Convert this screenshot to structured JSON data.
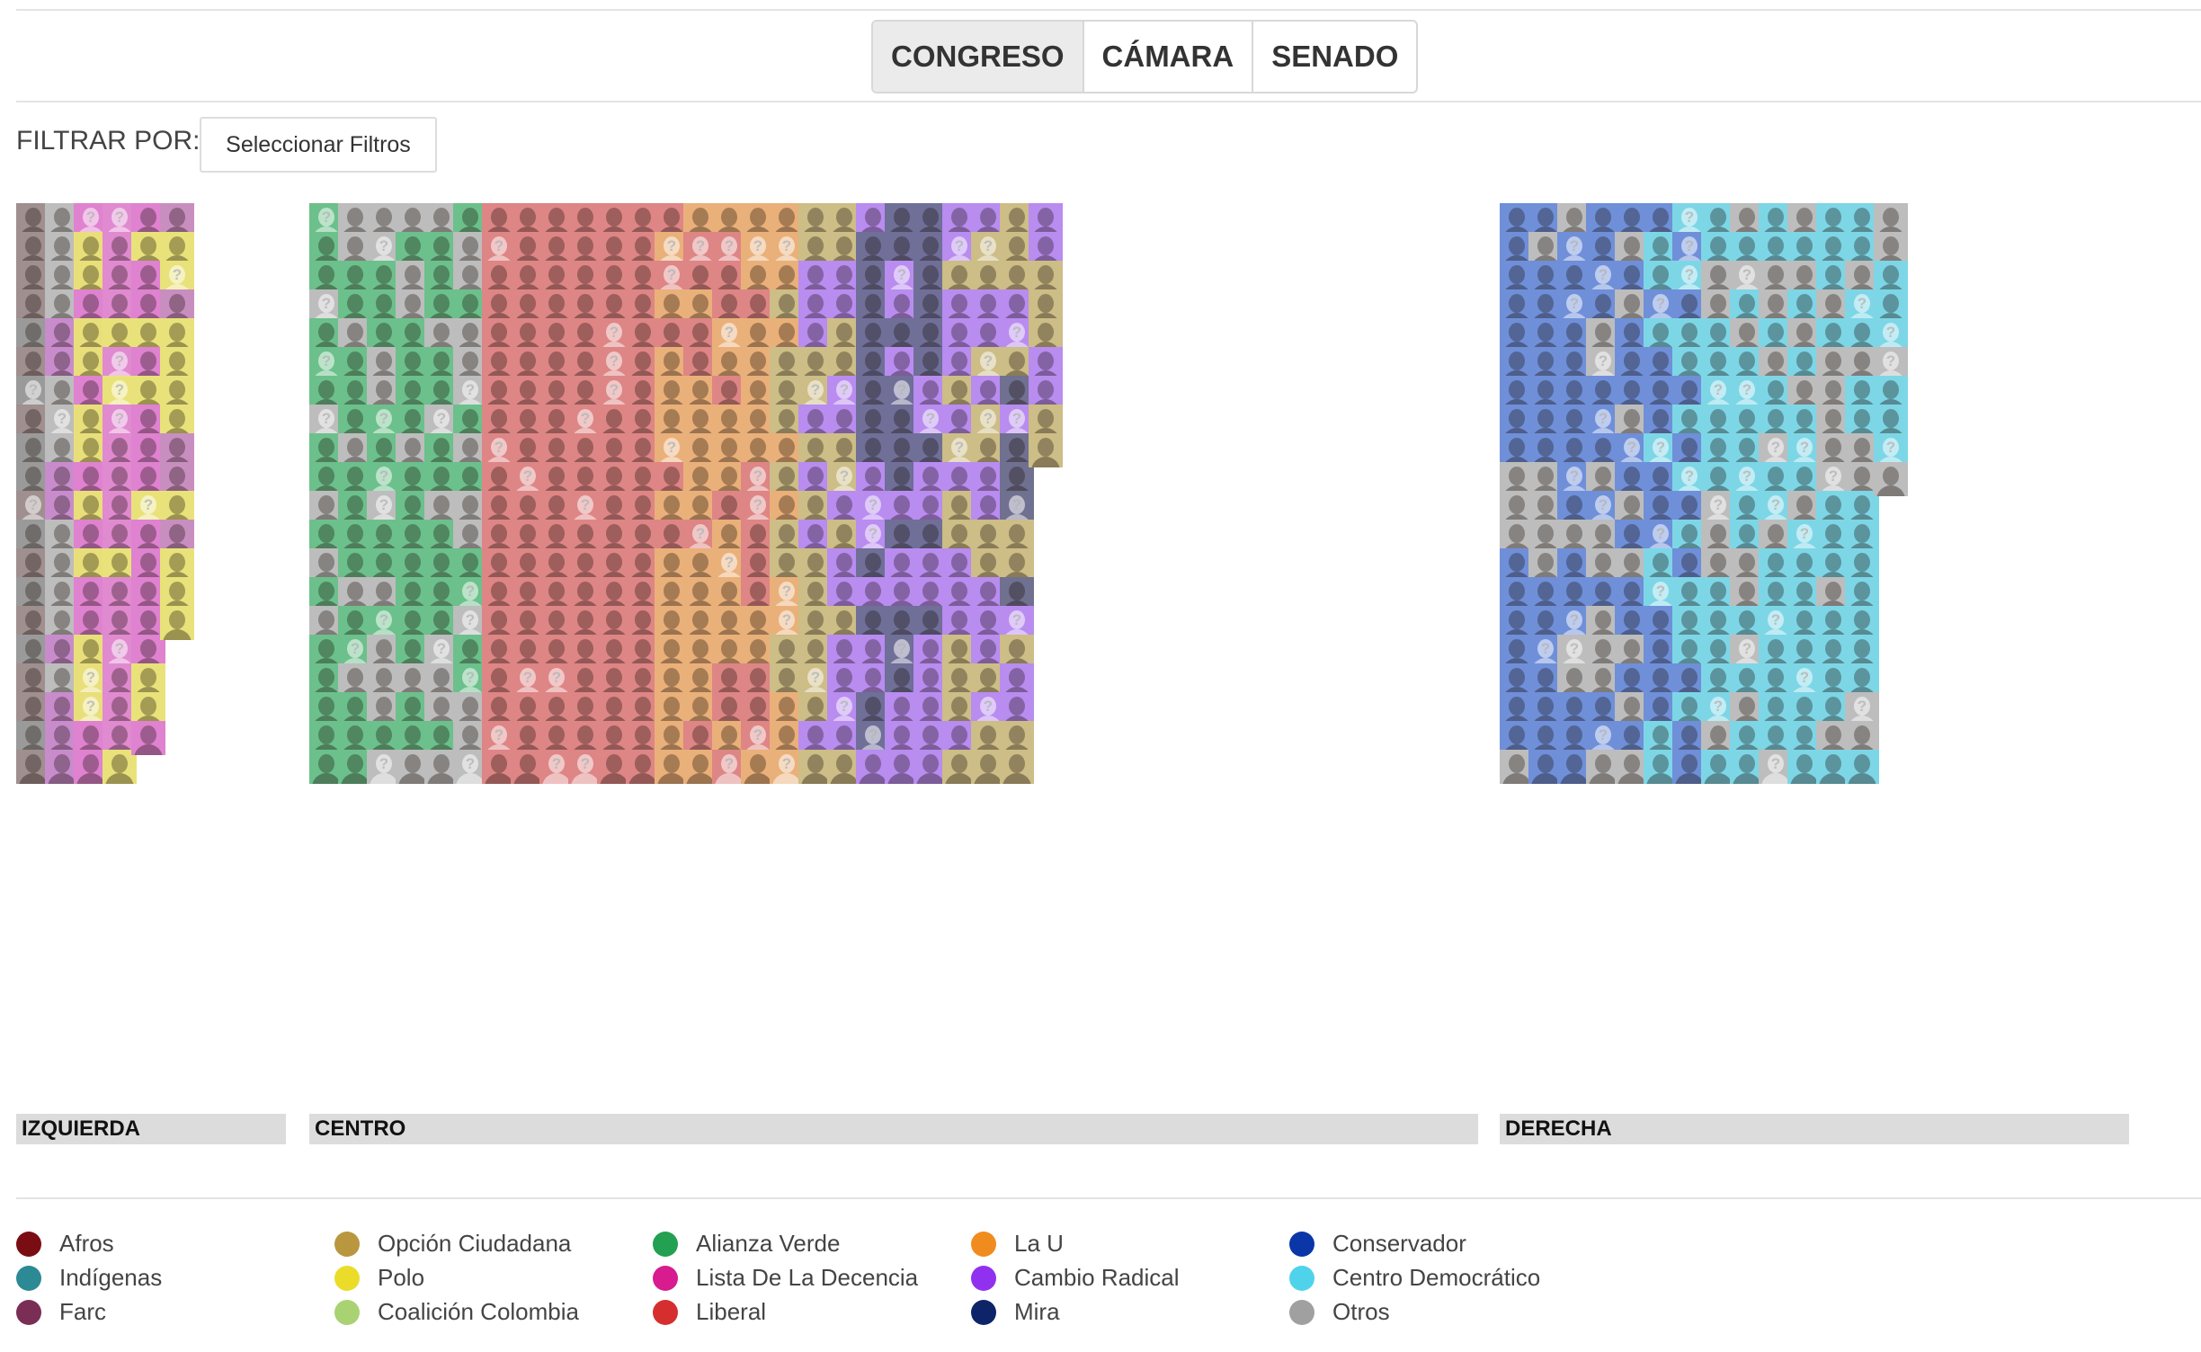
{
  "tabs": [
    "CONGRESO",
    "CÁMARA",
    "SENADO"
  ],
  "active_tab": "CONGRESO",
  "filter": {
    "label": "FILTRAR POR:",
    "button": "Seleccionar Filtros"
  },
  "blocs": [
    "IZQUIERDA",
    "CENTRO",
    "DERECHA"
  ],
  "legend": [
    {
      "label": "Afros",
      "color": "#7a0d14"
    },
    {
      "label": "Indígenas",
      "color": "#2b8a93"
    },
    {
      "label": "Farc",
      "color": "#7b2e55"
    },
    {
      "label": "Opción Ciudadana",
      "color": "#b9973f"
    },
    {
      "label": "Polo",
      "color": "#ebdc2a"
    },
    {
      "label": "Coalición Colombia",
      "color": "#a9d273"
    },
    {
      "label": "Alianza Verde",
      "color": "#23a051"
    },
    {
      "label": "Lista De La Decencia",
      "color": "#d81b8e"
    },
    {
      "label": "Liberal",
      "color": "#d62e2e"
    },
    {
      "label": "La U",
      "color": "#f08c1e"
    },
    {
      "label": "Cambio Radical",
      "color": "#9131f0"
    },
    {
      "label": "Mira",
      "color": "#0e2468"
    },
    {
      "label": "Conservador",
      "color": "#0b36a8"
    },
    {
      "label": "Centro Democrático",
      "color": "#4fd3eb"
    },
    {
      "label": "Otros",
      "color": "#a0a0a0"
    }
  ]
}
